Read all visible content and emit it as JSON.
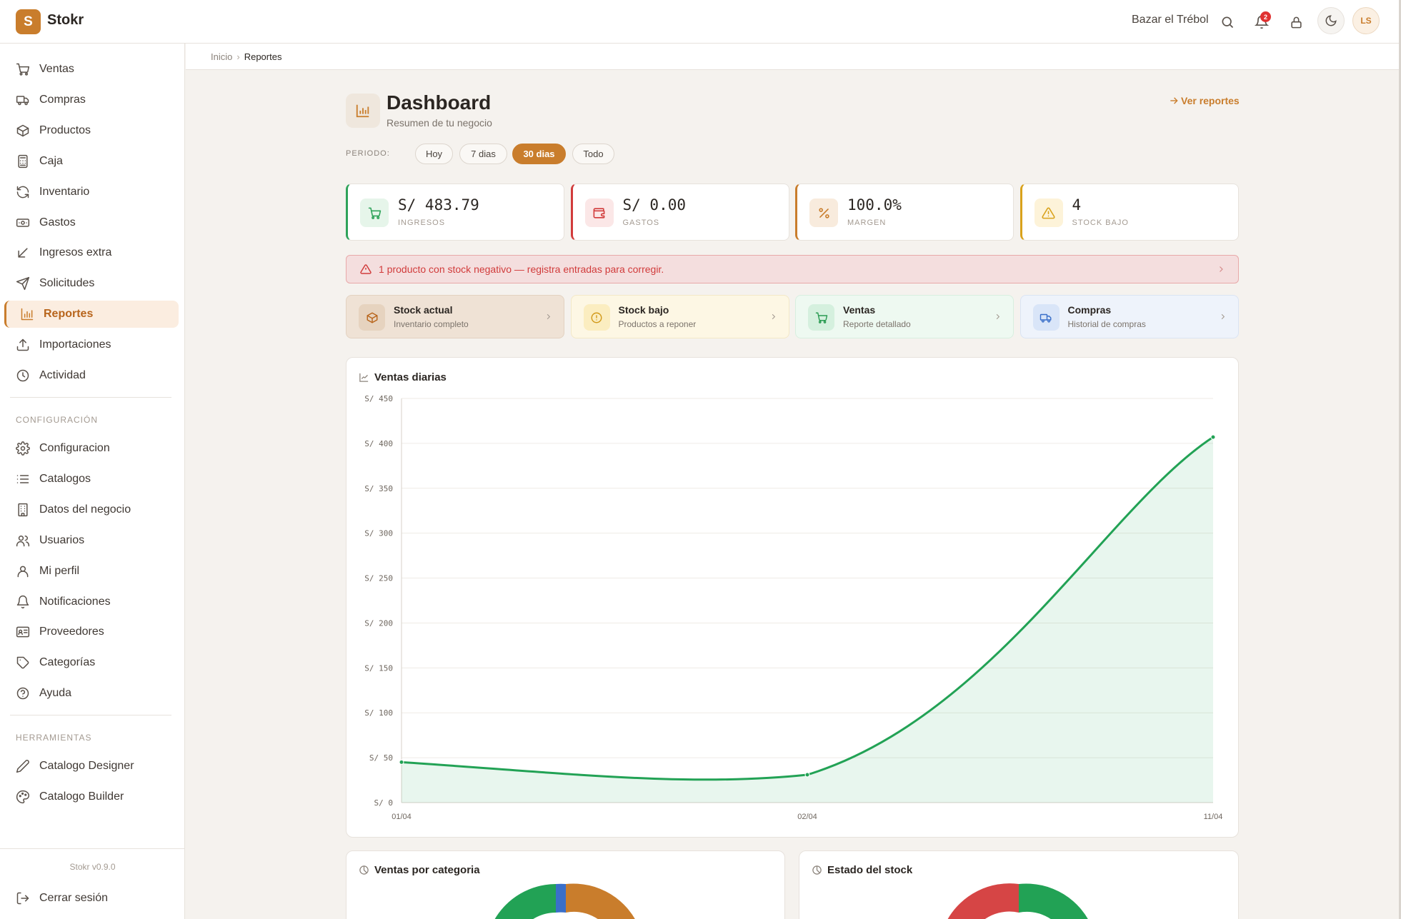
{
  "app": {
    "logo_letter": "S",
    "name": "Stokr"
  },
  "topbar": {
    "business_name": "Bazar el Trébol",
    "notification_count": "2",
    "avatar_initials": "LS"
  },
  "sidebar": {
    "items": [
      {
        "label": "Ventas",
        "icon": "cart-icon"
      },
      {
        "label": "Compras",
        "icon": "truck-icon"
      },
      {
        "label": "Productos",
        "icon": "box-icon"
      },
      {
        "label": "Caja",
        "icon": "calculator-icon"
      },
      {
        "label": "Inventario",
        "icon": "refresh-icon"
      },
      {
        "label": "Gastos",
        "icon": "banknote-icon"
      },
      {
        "label": "Ingresos extra",
        "icon": "arrow-down-left-icon"
      },
      {
        "label": "Solicitudes",
        "icon": "send-icon"
      },
      {
        "label": "Reportes",
        "icon": "bar-chart-icon",
        "active": true
      },
      {
        "label": "Importaciones",
        "icon": "upload-icon"
      },
      {
        "label": "Actividad",
        "icon": "clock-icon"
      }
    ],
    "config_section": "CONFIGURACIÓN",
    "config_items": [
      {
        "label": "Configuracion",
        "icon": "gear-icon"
      },
      {
        "label": "Catalogos",
        "icon": "list-icon"
      },
      {
        "label": "Datos del negocio",
        "icon": "building-icon"
      },
      {
        "label": "Usuarios",
        "icon": "users-icon"
      },
      {
        "label": "Mi perfil",
        "icon": "user-icon"
      },
      {
        "label": "Notificaciones",
        "icon": "bell-icon"
      },
      {
        "label": "Proveedores",
        "icon": "contact-card-icon"
      },
      {
        "label": "Categorías",
        "icon": "tag-icon"
      },
      {
        "label": "Ayuda",
        "icon": "help-circle-icon"
      }
    ],
    "tools_section": "HERRAMIENTAS",
    "tools_items": [
      {
        "label": "Catalogo Designer",
        "icon": "pencil-icon"
      },
      {
        "label": "Catalogo Builder",
        "icon": "palette-icon"
      }
    ],
    "version": "Stokr v0.9.0",
    "logout": "Cerrar sesión"
  },
  "breadcrumb": {
    "home": "Inicio",
    "current": "Reportes"
  },
  "page": {
    "title": "Dashboard",
    "subtitle": "Resumen de tu negocio",
    "view_reports": "Ver reportes"
  },
  "period": {
    "label": "PERIODO:",
    "options": [
      "Hoy",
      "7 dias",
      "30 dias",
      "Todo"
    ],
    "selected": "30 dias"
  },
  "kpis": [
    {
      "value": "S/ 483.79",
      "label": "INGRESOS",
      "color": "#2fa35a",
      "icon": "cart-icon"
    },
    {
      "value": "S/ 0.00",
      "label": "GASTOS",
      "color": "#d13b3b",
      "icon": "wallet-icon"
    },
    {
      "value": "100.0%",
      "label": "MARGEN",
      "color": "#c97d2c",
      "icon": "percent-icon"
    },
    {
      "value": "4",
      "label": "STOCK BAJO",
      "color": "#d9a21b",
      "icon": "warning-icon"
    }
  ],
  "alert": {
    "text": "1 producto con stock negativo — registra entradas para corregir."
  },
  "quick_links": [
    {
      "title": "Stock actual",
      "subtitle": "Inventario completo",
      "icon": "box-icon"
    },
    {
      "title": "Stock bajo",
      "subtitle": "Productos a reponer",
      "icon": "alert-circle-icon"
    },
    {
      "title": "Ventas",
      "subtitle": "Reporte detallado",
      "icon": "cart-icon"
    },
    {
      "title": "Compras",
      "subtitle": "Historial de compras",
      "icon": "truck-icon"
    }
  ],
  "chart_data": {
    "type": "area",
    "title": "Ventas diarias",
    "x": [
      "01/04",
      "02/04",
      "11/04"
    ],
    "series": [
      {
        "values": [
          45,
          31,
          407
        ]
      }
    ],
    "y_ticks": [
      "S/ 0",
      "S/ 50",
      "S/ 100",
      "S/ 150",
      "S/ 200",
      "S/ 250",
      "S/ 300",
      "S/ 350",
      "S/ 400",
      "S/ 450"
    ],
    "ylim": [
      0,
      450
    ],
    "grid": true,
    "color": "#22a255"
  },
  "bottom_cards": [
    {
      "title": "Ventas por categoria"
    },
    {
      "title": "Estado del stock"
    }
  ]
}
